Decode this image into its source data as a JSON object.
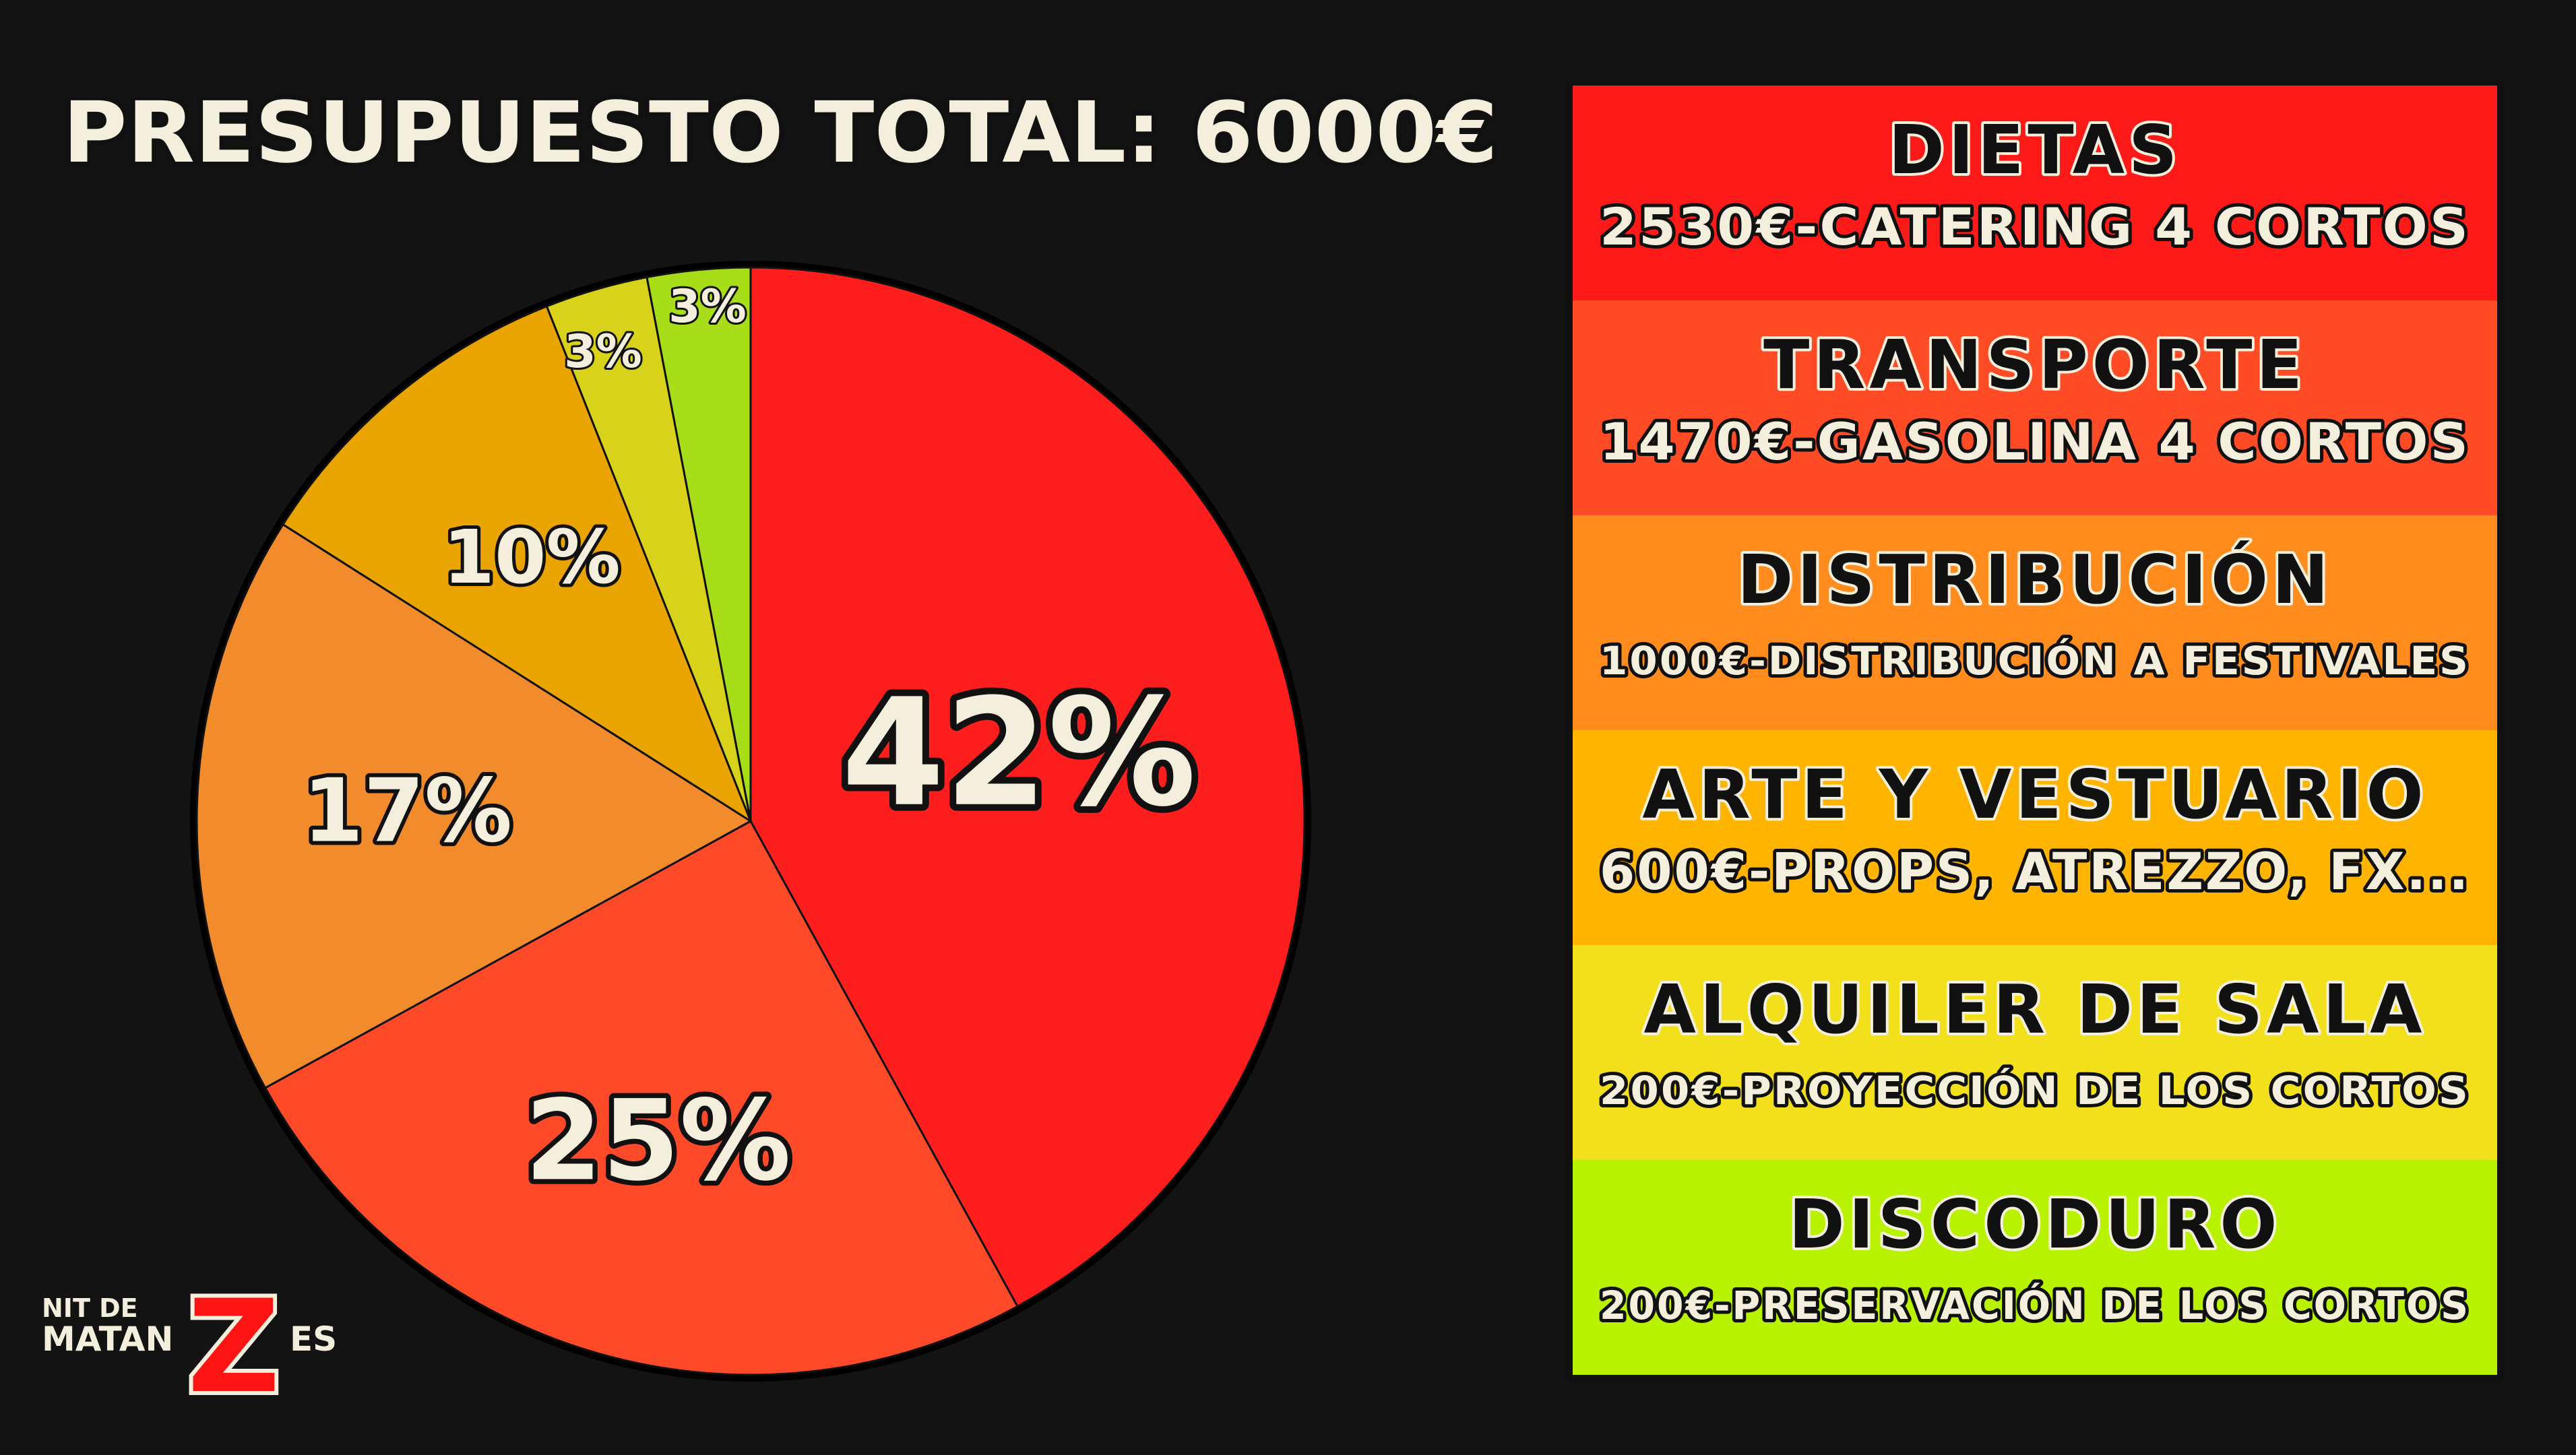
{
  "title": "PRESUPUESTO TOTAL: 6000€",
  "chart_data": {
    "type": "pie",
    "title": "PRESUPUESTO TOTAL: 6000€",
    "start_angle": "top, clockwise",
    "slices": [
      {
        "label": "42%",
        "value": 42,
        "color": "#ff1e1e"
      },
      {
        "label": "25%",
        "value": 25,
        "color": "#ff4a2a"
      },
      {
        "label": "17%",
        "value": 17,
        "color": "#f18b2c"
      },
      {
        "label": "10%",
        "value": 10,
        "color": "#eaa400"
      },
      {
        "label": "3%",
        "value": 3,
        "color": "#d8d21a"
      },
      {
        "label": "3%",
        "value": 3,
        "color": "#a8dd1a"
      }
    ]
  },
  "legend": [
    {
      "title": "DIETAS",
      "detail": "2530€-CATERING 4 CORTOS",
      "color": "#ff1a1a"
    },
    {
      "title": "TRANSPORTE",
      "detail": "1470€-GASOLINA 4 CORTOS",
      "color": "#ff4b26"
    },
    {
      "title": "DISTRIBUCIÓN",
      "detail": "1000€-DISTRIBUCIÓN A FESTIVALES",
      "color": "#ff8c1c"
    },
    {
      "title": "ARTE Y VESTUARIO",
      "detail": "600€-PROPS, ATREZZO, FX...",
      "color": "#ffb500"
    },
    {
      "title": "ALQUILER DE SALA",
      "detail": "200€-PROYECCIÓN DE LOS CORTOS",
      "color": "#f2e01c"
    },
    {
      "title": "DISCODURO",
      "detail": "200€-PRESERVACIÓN DE LOS CORTOS",
      "color": "#b9f200"
    }
  ],
  "logo": {
    "line1": "NIT DE",
    "line2": "MATAN",
    "letter": "Z",
    "suffix": "ES"
  }
}
